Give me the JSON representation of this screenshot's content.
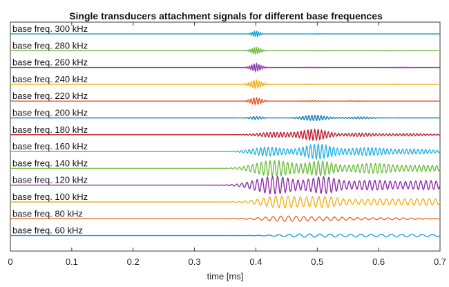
{
  "chart_data": {
    "type": "line",
    "title": "Single transducers attachment signals for different base frequences",
    "xlabel": "time [ms]",
    "ylabel": "",
    "xlim": [
      0,
      0.7
    ],
    "xticks": [
      {
        "value": 0,
        "label": "0"
      },
      {
        "value": 0.1,
        "label": "0.1"
      },
      {
        "value": 0.2,
        "label": "0.2"
      },
      {
        "value": 0.3,
        "label": "0.3"
      },
      {
        "value": 0.4,
        "label": "0.4"
      },
      {
        "value": 0.5,
        "label": "0.5"
      },
      {
        "value": 0.6,
        "label": "0.6"
      },
      {
        "value": 0.7,
        "label": "0.7"
      }
    ],
    "grid": false,
    "legend": "labels on each trace, left",
    "series": [
      {
        "name": "base freq. 300 kHz",
        "frequency_khz": 300,
        "color": "#1ba6d9",
        "packets": [
          {
            "t": 0.4,
            "amp": 0.55,
            "width": 0.006
          },
          {
            "t": 0.5,
            "amp": 0.06,
            "width": 0.01
          }
        ]
      },
      {
        "name": "base freq. 280 kHz",
        "frequency_khz": 280,
        "color": "#6bbd3b",
        "packets": [
          {
            "t": 0.4,
            "amp": 0.65,
            "width": 0.007
          },
          {
            "t": 0.5,
            "amp": 0.06,
            "width": 0.01
          },
          {
            "t": 0.62,
            "amp": 0.05,
            "width": 0.015
          }
        ]
      },
      {
        "name": "base freq. 260 kHz",
        "frequency_khz": 260,
        "color": "#8a3aa6",
        "packets": [
          {
            "t": 0.4,
            "amp": 0.75,
            "width": 0.008
          },
          {
            "t": 0.49,
            "amp": 0.06,
            "width": 0.01
          },
          {
            "t": 0.64,
            "amp": 0.07,
            "width": 0.015
          }
        ]
      },
      {
        "name": "base freq. 240 kHz",
        "frequency_khz": 240,
        "color": "#f2b010",
        "packets": [
          {
            "t": 0.4,
            "amp": 0.8,
            "width": 0.009
          },
          {
            "t": 0.49,
            "amp": 0.07,
            "width": 0.012
          },
          {
            "t": 0.63,
            "amp": 0.06,
            "width": 0.015
          }
        ]
      },
      {
        "name": "base freq. 220 kHz",
        "frequency_khz": 220,
        "color": "#e3552a",
        "packets": [
          {
            "t": 0.4,
            "amp": 0.7,
            "width": 0.009
          },
          {
            "t": 0.49,
            "amp": 0.12,
            "width": 0.012
          },
          {
            "t": 0.56,
            "amp": 0.08,
            "width": 0.012
          }
        ]
      },
      {
        "name": "base freq. 200 kHz",
        "frequency_khz": 200,
        "color": "#1480c0",
        "packets": [
          {
            "t": 0.4,
            "amp": 0.3,
            "width": 0.01
          },
          {
            "t": 0.495,
            "amp": 0.55,
            "width": 0.018
          },
          {
            "t": 0.57,
            "amp": 0.2,
            "width": 0.02
          }
        ]
      },
      {
        "name": "base freq. 180 kHz",
        "frequency_khz": 180,
        "color": "#c0202e",
        "packets": [
          {
            "t": 0.43,
            "amp": 0.5,
            "width": 0.025
          },
          {
            "t": 0.495,
            "amp": 1.1,
            "width": 0.02
          },
          {
            "t": 0.57,
            "amp": 0.35,
            "width": 0.025
          },
          {
            "t": 0.65,
            "amp": 0.25,
            "width": 0.03
          }
        ]
      },
      {
        "name": "base freq. 160 kHz",
        "frequency_khz": 160,
        "color": "#2ab4e6",
        "packets": [
          {
            "t": 0.42,
            "amp": 0.9,
            "width": 0.025
          },
          {
            "t": 0.5,
            "amp": 1.5,
            "width": 0.022
          },
          {
            "t": 0.58,
            "amp": 0.8,
            "width": 0.03
          },
          {
            "t": 0.66,
            "amp": 0.5,
            "width": 0.03
          }
        ]
      },
      {
        "name": "base freq. 140 kHz",
        "frequency_khz": 140,
        "color": "#70bf40",
        "packets": [
          {
            "t": 0.43,
            "amp": 1.6,
            "width": 0.03
          },
          {
            "t": 0.505,
            "amp": 1.4,
            "width": 0.02
          },
          {
            "t": 0.59,
            "amp": 1.0,
            "width": 0.035
          },
          {
            "t": 0.68,
            "amp": 0.6,
            "width": 0.03
          }
        ]
      },
      {
        "name": "base freq. 120 kHz",
        "frequency_khz": 120,
        "color": "#8c30ab",
        "packets": [
          {
            "t": 0.43,
            "amp": 1.8,
            "width": 0.03
          },
          {
            "t": 0.51,
            "amp": 1.6,
            "width": 0.022
          },
          {
            "t": 0.59,
            "amp": 1.0,
            "width": 0.035
          },
          {
            "t": 0.68,
            "amp": 0.9,
            "width": 0.03
          }
        ]
      },
      {
        "name": "base freq. 100 kHz",
        "frequency_khz": 100,
        "color": "#f4b21a",
        "packets": [
          {
            "t": 0.44,
            "amp": 1.2,
            "width": 0.03
          },
          {
            "t": 0.51,
            "amp": 1.0,
            "width": 0.025
          },
          {
            "t": 0.6,
            "amp": 0.6,
            "width": 0.04
          },
          {
            "t": 0.68,
            "amp": 0.6,
            "width": 0.03
          }
        ]
      },
      {
        "name": "base freq. 80 kHz",
        "frequency_khz": 80,
        "color": "#e86a2e",
        "packets": [
          {
            "t": 0.45,
            "amp": 0.55,
            "width": 0.035
          },
          {
            "t": 0.53,
            "amp": 0.3,
            "width": 0.03
          },
          {
            "t": 0.62,
            "amp": 0.2,
            "width": 0.04
          }
        ]
      },
      {
        "name": "base freq. 60 kHz",
        "frequency_khz": 60,
        "color": "#1e9fdc",
        "packets": [
          {
            "t": 0.48,
            "amp": 0.3,
            "width": 0.04
          },
          {
            "t": 0.58,
            "amp": 0.25,
            "width": 0.05
          },
          {
            "t": 0.67,
            "amp": 0.2,
            "width": 0.04
          }
        ]
      }
    ]
  }
}
